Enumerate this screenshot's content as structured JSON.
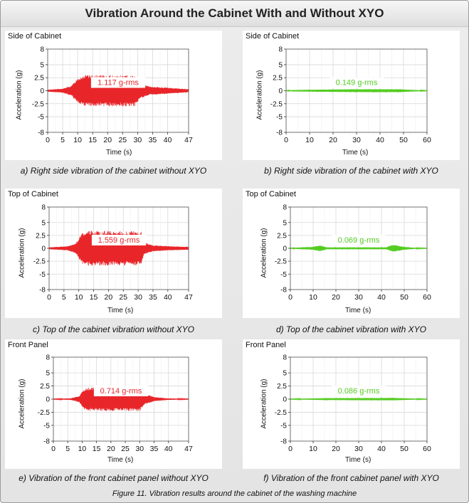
{
  "title": "Vibration Around the Cabinet With and Without XYO",
  "figure_caption": "Figure 11. Vibration results around the cabinet of the washing machine",
  "colors": {
    "without": "#e8262a",
    "with": "#55cc22"
  },
  "chart_data": [
    {
      "type": "area",
      "title": "Side of Cabinet",
      "caption": "a) Right side vibration of the cabinet without XYO",
      "xlabel": "Time (s)",
      "ylabel": "Acceleration (g)",
      "xlim": [
        0,
        47
      ],
      "ylim": [
        -8,
        8
      ],
      "xticks": [
        0,
        5,
        10,
        15,
        20,
        25,
        30,
        35,
        40,
        47
      ],
      "yticks": [
        "8",
        "5",
        "2.5",
        "0",
        "-2.5",
        "-5",
        "-8"
      ],
      "annotation": "1.117 g-rms",
      "series": "without",
      "envelope": [
        [
          0,
          0.2
        ],
        [
          5,
          0.4
        ],
        [
          8,
          1
        ],
        [
          10,
          2.5
        ],
        [
          12,
          3
        ],
        [
          29,
          3
        ],
        [
          31,
          1.5
        ],
        [
          34,
          0.8
        ],
        [
          40,
          0.6
        ],
        [
          47,
          0.3
        ]
      ]
    },
    {
      "type": "area",
      "title": "Side of Cabinet",
      "caption": "b) Right side vibration of the cabinet with XYO",
      "xlabel": "Time (s)",
      "ylabel": "Acceleration (g)",
      "xlim": [
        0,
        60
      ],
      "ylim": [
        -8,
        8
      ],
      "xticks": [
        0,
        10,
        20,
        30,
        40,
        50,
        60
      ],
      "yticks": [
        "8",
        "5",
        "2.5",
        "0",
        "-2.5",
        "-5",
        "-8"
      ],
      "annotation": "0.149 g-rms",
      "series": "with",
      "envelope": [
        [
          0,
          0.05
        ],
        [
          3,
          0.15
        ],
        [
          10,
          0.2
        ],
        [
          30,
          0.3
        ],
        [
          48,
          0.3
        ],
        [
          55,
          0.15
        ],
        [
          60,
          0.05
        ]
      ]
    },
    {
      "type": "area",
      "title": "Top of Cabinet",
      "caption": "c) Top of the cabinet vibration without XYO",
      "xlabel": "Time (s)",
      "ylabel": "Acceleration (g)",
      "xlim": [
        0,
        47
      ],
      "ylim": [
        -8,
        8
      ],
      "xticks": [
        0,
        5,
        10,
        15,
        20,
        25,
        30,
        35,
        40,
        47
      ],
      "yticks": [
        "8",
        "5",
        "2.5",
        "0",
        "-2.5",
        "-5",
        "-8"
      ],
      "annotation": "1.559 g-rms",
      "series": "without",
      "envelope": [
        [
          0,
          0.2
        ],
        [
          6,
          0.4
        ],
        [
          9,
          1
        ],
        [
          11,
          3
        ],
        [
          13,
          3.4
        ],
        [
          31,
          3.3
        ],
        [
          32,
          1.2
        ],
        [
          35,
          0.6
        ],
        [
          41,
          0.4
        ],
        [
          47,
          0.3
        ]
      ]
    },
    {
      "type": "area",
      "title": "Top of Cabinet",
      "caption": "d) Top of the cabinet vibration with XYO",
      "xlabel": "Time (s)",
      "ylabel": "Acceleration (g)",
      "xlim": [
        0,
        60
      ],
      "ylim": [
        -8,
        8
      ],
      "xticks": [
        0,
        10,
        20,
        30,
        40,
        50,
        60
      ],
      "yticks": [
        "8",
        "5",
        "2.5",
        "0",
        "-2.5",
        "-5",
        "-8"
      ],
      "annotation": "0.069 g-rms",
      "series": "with",
      "envelope": [
        [
          0,
          0.05
        ],
        [
          5,
          0.2
        ],
        [
          10,
          0.3
        ],
        [
          13,
          0.6
        ],
        [
          16,
          0.2
        ],
        [
          42,
          0.2
        ],
        [
          45,
          0.7
        ],
        [
          50,
          0.3
        ],
        [
          55,
          0.1
        ],
        [
          60,
          0.05
        ]
      ]
    },
    {
      "type": "area",
      "title": "Front Panel",
      "caption": "e) Vibration of the front cabinet panel without XYO",
      "xlabel": "Time (s)",
      "ylabel": "Acceleration (g)",
      "xlim": [
        0,
        47
      ],
      "ylim": [
        -8,
        8
      ],
      "xticks": [
        0,
        5,
        10,
        15,
        20,
        25,
        30,
        35,
        40,
        47
      ],
      "yticks": [
        "8",
        "5",
        "2.5",
        "0",
        "-2.5",
        "-5",
        "-8"
      ],
      "annotation": "0.714 g-rms",
      "series": "without",
      "envelope": [
        [
          0,
          0.05
        ],
        [
          6,
          0.15
        ],
        [
          9,
          0.6
        ],
        [
          11,
          2.2
        ],
        [
          30,
          2.3
        ],
        [
          32,
          1
        ],
        [
          35,
          0.4
        ],
        [
          40,
          0.15
        ],
        [
          47,
          0.05
        ]
      ]
    },
    {
      "type": "area",
      "title": "Front Panel",
      "caption": "f) Vibration of the front cabinet panel with XYO",
      "xlabel": "Time (s)",
      "ylabel": "Acceleration (g)",
      "xlim": [
        0,
        60
      ],
      "ylim": [
        -8,
        8
      ],
      "xticks": [
        0,
        10,
        20,
        30,
        40,
        50,
        60
      ],
      "yticks": [
        "8",
        "5",
        "2.5",
        "0",
        "-2.5",
        "-5",
        "-8"
      ],
      "annotation": "0.086 g-rms",
      "series": "with",
      "envelope": [
        [
          0,
          0.05
        ],
        [
          5,
          0.1
        ],
        [
          15,
          0.2
        ],
        [
          45,
          0.25
        ],
        [
          55,
          0.1
        ],
        [
          60,
          0.05
        ]
      ]
    }
  ]
}
